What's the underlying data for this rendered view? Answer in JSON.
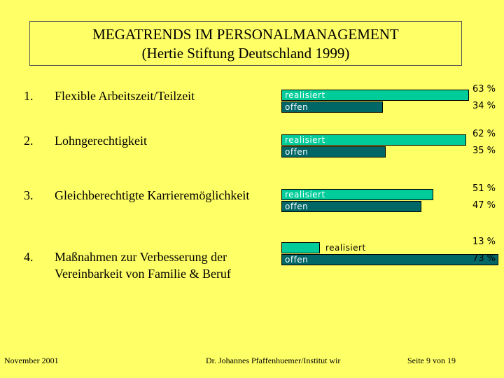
{
  "title": {
    "line1": "MEGATRENDS IM PERSONALMANAGEMENT",
    "line2": "(Hertie Stiftung Deutschland 1999)"
  },
  "chart_data": {
    "type": "bar",
    "title": "MEGATRENDS IM PERSONALMANAGEMENT (Hertie Stiftung Deutschland 1999)",
    "categories": [
      "Flexible Arbeitszeit/Teilzeit",
      "Lohngerechtigkeit",
      "Gleichberechtigte Karrieremöglichkeit",
      "Maßnahmen zur Verbesserung der Vereinbarkeit von Familie & Beruf"
    ],
    "series": [
      {
        "name": "realisiert",
        "values": [
          63,
          62,
          51,
          13
        ],
        "color": "#00cc99"
      },
      {
        "name": "offen",
        "values": [
          34,
          35,
          47,
          73
        ],
        "color": "#006666"
      }
    ],
    "unit": "%"
  },
  "rows": [
    {
      "num": "1.",
      "label_lines": [
        "Flexible Arbeitszeit/Teilzeit"
      ],
      "realisiert_label": "realisiert",
      "offen_label": "offen",
      "realisiert_pct": "63 %",
      "offen_pct": "34 %"
    },
    {
      "num": "2.",
      "label_lines": [
        "Lohngerechtigkeit"
      ],
      "realisiert_label": "realisiert",
      "offen_label": "offen",
      "realisiert_pct": "62 %",
      "offen_pct": "35 %"
    },
    {
      "num": "3.",
      "label_lines": [
        "Gleichberechtigte Karrieremöglichkeit"
      ],
      "realisiert_label": "realisiert",
      "offen_label": "offen",
      "realisiert_pct": "51 %",
      "offen_pct": "47 %"
    },
    {
      "num": "4.",
      "label_lines": [
        "Maßnahmen zur Verbesserung der",
        "Vereinbarkeit von Familie & Beruf"
      ],
      "realisiert_label": "realisiert",
      "offen_label": "offen",
      "realisiert_pct": "13 %",
      "offen_pct": "73 %"
    }
  ],
  "footer": {
    "date": "November 2001",
    "author": "Dr. Johannes Pfaffenhuemer/Institut wir",
    "page": "Seite 9 von 19"
  }
}
